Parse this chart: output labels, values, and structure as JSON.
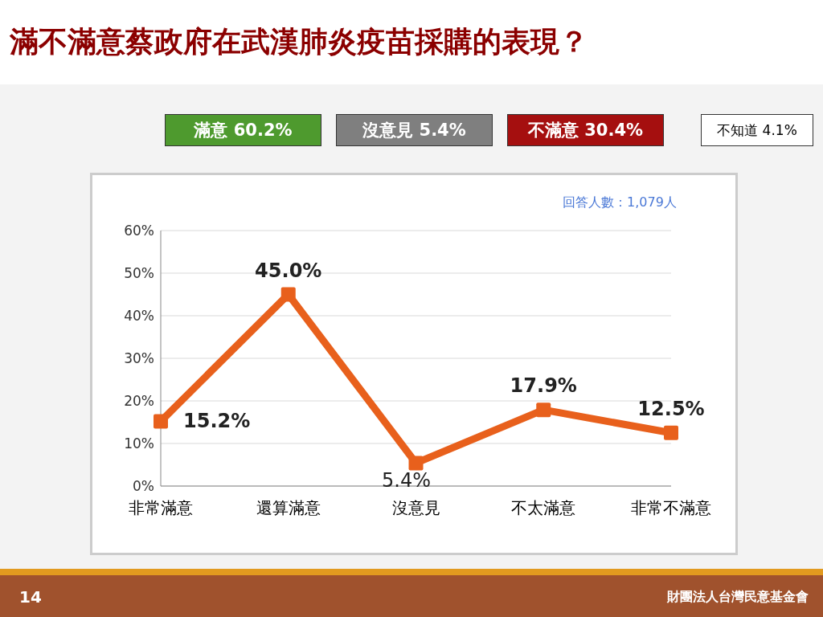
{
  "chart_data": {
    "type": "line",
    "title": "滿不滿意蔡政府在武漢肺炎疫苗採購的表現？",
    "categories": [
      "非常滿意",
      "還算滿意",
      "沒意見",
      "不太滿意",
      "非常不滿意"
    ],
    "series": [
      {
        "color": "#e8601c",
        "values": [
          15.2,
          45.0,
          5.4,
          17.9,
          12.5
        ],
        "value_labels": [
          "15.2%",
          "45.0%",
          "5.4%",
          "17.9%",
          "12.5%"
        ]
      }
    ],
    "ylim": [
      0,
      60
    ],
    "yticks": [
      {
        "value": 0,
        "label": "0%"
      },
      {
        "value": 10,
        "label": "10%"
      },
      {
        "value": 20,
        "label": "20%"
      },
      {
        "value": 30,
        "label": "30%"
      },
      {
        "value": 40,
        "label": "40%"
      },
      {
        "value": 50,
        "label": "50%"
      },
      {
        "value": 60,
        "label": "60%"
      }
    ],
    "grid": "y",
    "marker": "square",
    "line_style": "solid",
    "legend": false,
    "annotations": [
      "滿意 60.2%",
      "沒意見 5.4%",
      "不滿意 30.4%",
      "不知道 4.1%",
      "回答人數：1,079人",
      "14",
      "財團法人台灣民意基金會"
    ]
  }
}
